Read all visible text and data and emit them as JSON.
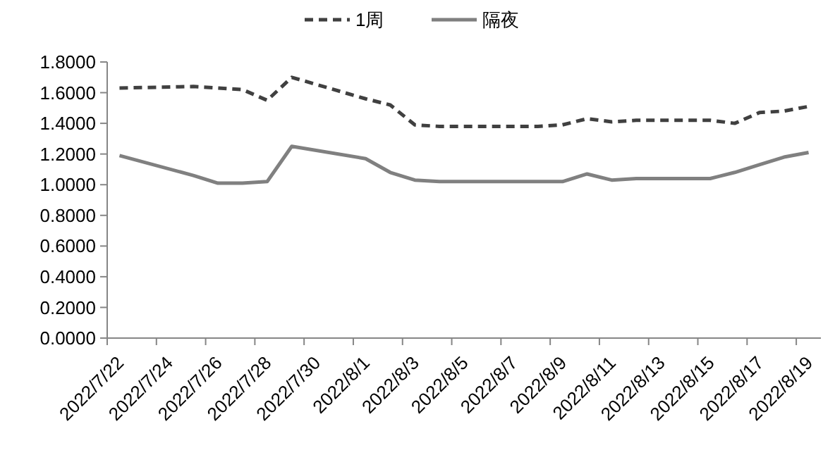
{
  "chart_data": {
    "type": "line",
    "x": [
      "2022-07-22T12:00",
      "2022-07-25T12:00",
      "2022-07-26T12:00",
      "2022-07-27T12:00",
      "2022-07-28T12:00",
      "2022-07-29T12:00",
      "2022-08-01T12:00",
      "2022-08-02T12:00",
      "2022-08-03T12:00",
      "2022-08-04T12:00",
      "2022-08-05T12:00",
      "2022-08-08T12:00",
      "2022-08-09T12:00",
      "2022-08-10T12:00",
      "2022-08-11T12:00",
      "2022-08-12T12:00",
      "2022-08-15T12:00",
      "2022-08-16T12:00",
      "2022-08-17T12:00",
      "2022-08-18T12:00",
      "2022-08-19T12:00"
    ],
    "series": [
      {
        "name": "1周",
        "color": "#404040",
        "line_style": "dashed",
        "values": [
          1.63,
          1.64,
          1.63,
          1.62,
          1.55,
          1.7,
          1.56,
          1.52,
          1.39,
          1.38,
          1.38,
          1.38,
          1.39,
          1.43,
          1.41,
          1.42,
          1.42,
          1.4,
          1.47,
          1.48,
          1.51
        ]
      },
      {
        "name": "隔夜",
        "color": "#808080",
        "line_style": "solid",
        "values": [
          1.19,
          1.06,
          1.01,
          1.01,
          1.02,
          1.25,
          1.17,
          1.08,
          1.03,
          1.02,
          1.02,
          1.02,
          1.02,
          1.07,
          1.03,
          1.04,
          1.04,
          1.08,
          1.13,
          1.18,
          1.21
        ]
      }
    ],
    "xlim": [
      "2022-07-22",
      "2022-08-20"
    ],
    "xticks": [
      {
        "value": "2022-07-22",
        "label": "2022/7/22"
      },
      {
        "value": "2022-07-24",
        "label": "2022/7/24"
      },
      {
        "value": "2022-07-26",
        "label": "2022/7/26"
      },
      {
        "value": "2022-07-28",
        "label": "2022/7/28"
      },
      {
        "value": "2022-07-30",
        "label": "2022/7/30"
      },
      {
        "value": "2022-08-01",
        "label": "2022/8/1"
      },
      {
        "value": "2022-08-03",
        "label": "2022/8/3"
      },
      {
        "value": "2022-08-05",
        "label": "2022/8/5"
      },
      {
        "value": "2022-08-07",
        "label": "2022/8/7"
      },
      {
        "value": "2022-08-09",
        "label": "2022/8/9"
      },
      {
        "value": "2022-08-11",
        "label": "2022/8/11"
      },
      {
        "value": "2022-08-13",
        "label": "2022/8/13"
      },
      {
        "value": "2022-08-15",
        "label": "2022/8/15"
      },
      {
        "value": "2022-08-17",
        "label": "2022/8/17"
      },
      {
        "value": "2022-08-19",
        "label": "2022/8/19"
      }
    ],
    "ylim": [
      0,
      1.8
    ],
    "yticks": [
      {
        "value": 0,
        "label": "0.0000"
      },
      {
        "value": 0.2,
        "label": "0.2000"
      },
      {
        "value": 0.4,
        "label": "0.4000"
      },
      {
        "value": 0.6,
        "label": "0.6000"
      },
      {
        "value": 0.8,
        "label": "0.8000"
      },
      {
        "value": 1.0,
        "label": "1.0000"
      },
      {
        "value": 1.2,
        "label": "1.2000"
      },
      {
        "value": 1.4,
        "label": "1.4000"
      },
      {
        "value": 1.6,
        "label": "1.6000"
      },
      {
        "value": 1.8,
        "label": "1.8000"
      }
    ],
    "grid": false,
    "legend": "top",
    "marker": "none"
  }
}
